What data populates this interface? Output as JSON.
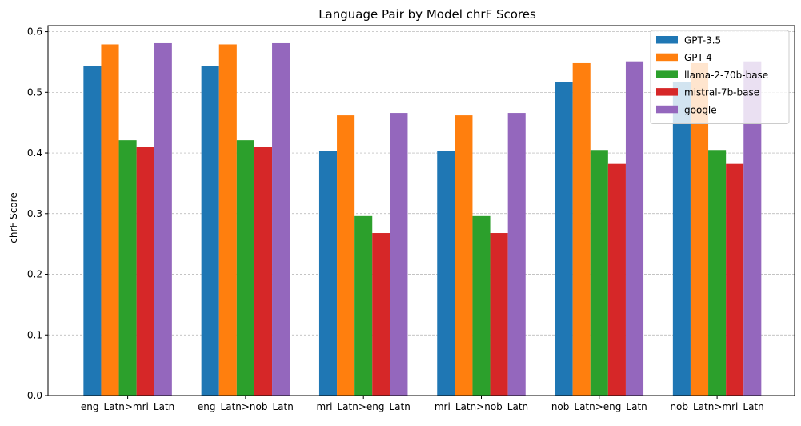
{
  "chart_data": {
    "type": "bar",
    "title": "Language Pair by Model chrF Scores",
    "xlabel": "",
    "ylabel": "chrF Score",
    "ylim": [
      0,
      0.6
    ],
    "yticks": [
      "0.0",
      "0.1",
      "0.2",
      "0.3",
      "0.4",
      "0.5",
      "0.6"
    ],
    "grid": "horizontal dashed",
    "legend_position": "top-right",
    "categories": [
      "eng_Latn>mri_Latn",
      "eng_Latn>nob_Latn",
      "mri_Latn>eng_Latn",
      "mri_Latn>nob_Latn",
      "nob_Latn>eng_Latn",
      "nob_Latn>mri_Latn"
    ],
    "series": [
      {
        "name": "GPT-3.5",
        "color": "#1f77b4",
        "values": [
          0.543,
          0.543,
          0.403,
          0.403,
          0.517,
          0.517
        ]
      },
      {
        "name": "GPT-4",
        "color": "#ff7f0e",
        "values": [
          0.579,
          0.579,
          0.462,
          0.462,
          0.548,
          0.548
        ]
      },
      {
        "name": "llama-2-70b-base",
        "color": "#2ca02c",
        "values": [
          0.421,
          0.421,
          0.296,
          0.296,
          0.405,
          0.405
        ]
      },
      {
        "name": "mistral-7b-base",
        "color": "#d62728",
        "values": [
          0.41,
          0.41,
          0.268,
          0.268,
          0.382,
          0.382
        ]
      },
      {
        "name": "google",
        "color": "#9467bd",
        "values": [
          0.581,
          0.581,
          0.466,
          0.466,
          0.551,
          0.551
        ]
      }
    ]
  }
}
